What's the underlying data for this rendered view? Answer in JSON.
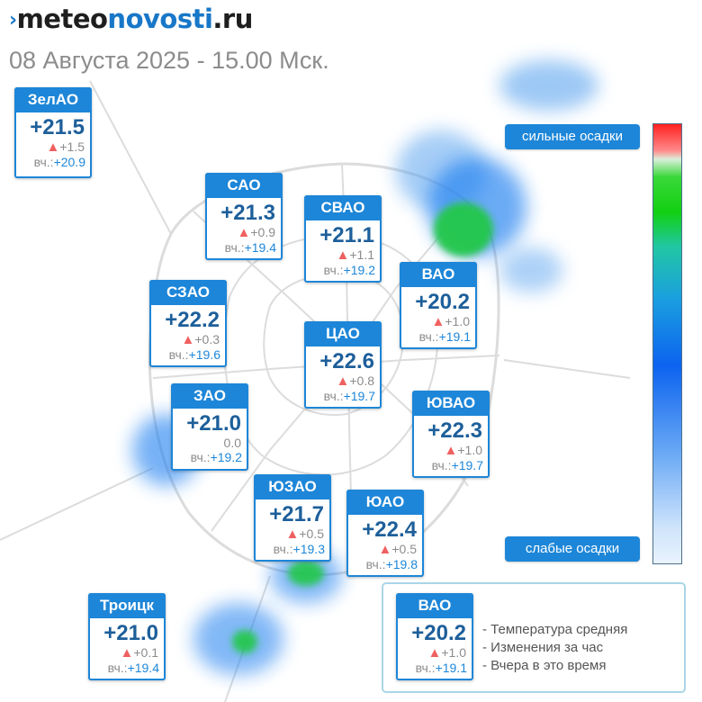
{
  "header": {
    "logo_part1": "meteo",
    "logo_part2": "novosti",
    "logo_part3": ".ru",
    "subtitle": "08 Августа 2025 - 15.00 Мск."
  },
  "districts": [
    {
      "name": "ЗелАО",
      "temp": "+21.5",
      "change": "+1.5",
      "yesterday_label": "вч.:",
      "yesterday": "+20.9",
      "arrow": true
    },
    {
      "name": "САО",
      "temp": "+21.3",
      "change": "+0.9",
      "yesterday_label": "вч.:",
      "yesterday": "+19.4",
      "arrow": true
    },
    {
      "name": "СВАО",
      "temp": "+21.1",
      "change": "+1.1",
      "yesterday_label": "вч.:",
      "yesterday": "+19.2",
      "arrow": true
    },
    {
      "name": "ВАО",
      "temp": "+20.2",
      "change": "+1.0",
      "yesterday_label": "вч.:",
      "yesterday": "+19.1",
      "arrow": true
    },
    {
      "name": "СЗАО",
      "temp": "+22.2",
      "change": "+0.3",
      "yesterday_label": "вч.:",
      "yesterday": "+19.6",
      "arrow": true
    },
    {
      "name": "ЦАО",
      "temp": "+22.6",
      "change": "+0.8",
      "yesterday_label": "вч.:",
      "yesterday": "+19.7",
      "arrow": true
    },
    {
      "name": "ЗАО",
      "temp": "+21.0",
      "change": "0.0",
      "yesterday_label": "вч.:",
      "yesterday": "+19.2",
      "arrow": false
    },
    {
      "name": "ЮВАО",
      "temp": "+22.3",
      "change": "+1.0",
      "yesterday_label": "вч.:",
      "yesterday": "+19.7",
      "arrow": true
    },
    {
      "name": "ЮЗАО",
      "temp": "+21.7",
      "change": "+0.5",
      "yesterday_label": "вч.:",
      "yesterday": "+19.3",
      "arrow": true
    },
    {
      "name": "ЮАО",
      "temp": "+22.4",
      "change": "+0.5",
      "yesterday_label": "вч.:",
      "yesterday": "+19.8",
      "arrow": true
    },
    {
      "name": "Троицк",
      "temp": "+21.0",
      "change": "+0.1",
      "yesterday_label": "вч.:",
      "yesterday": "+19.4",
      "arrow": true
    }
  ],
  "precip_scale": {
    "heavy_label": "сильные осадки",
    "light_label": "слабые осадки"
  },
  "legend": {
    "card": {
      "name": "ВАО",
      "temp": "+20.2",
      "change": "+1.0",
      "yesterday_label": "вч.:",
      "yesterday": "+19.1"
    },
    "line_temp": "- Температура средняя",
    "line_change": "- Изменения за час",
    "line_yesterday": "- Вчера в это время"
  },
  "colors": {
    "accent": "#1d86d8",
    "temperature_text": "#1d5f9a",
    "arrow_up": "#f06060"
  }
}
